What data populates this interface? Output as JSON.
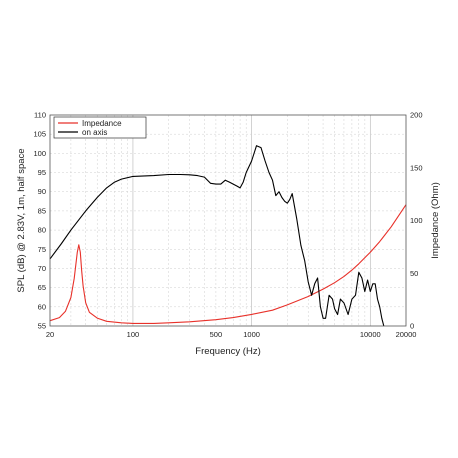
{
  "chart_data": {
    "type": "line",
    "xlabel": "Frequency (Hz)",
    "ylabel_left": "SPL (dB) @ 2.83V, 1m, half space",
    "ylabel_right": "Impedance (Ohm)",
    "x_scale": "log",
    "xlim": [
      20,
      20000
    ],
    "ylim_left": [
      55,
      110
    ],
    "ylim_right": [
      0,
      200
    ],
    "x_ticks": [
      {
        "value": 20,
        "label": "20"
      },
      {
        "value": 100,
        "label": "100"
      },
      {
        "value": 500,
        "label": "500"
      },
      {
        "value": 1000,
        "label": "1000"
      },
      {
        "value": 10000,
        "label": "10000"
      },
      {
        "value": 20000,
        "label": "20000"
      }
    ],
    "y_ticks_left": [
      "55",
      "60",
      "65",
      "70",
      "75",
      "80",
      "85",
      "90",
      "95",
      "100",
      "105",
      "110"
    ],
    "y_ticks_right": [
      "0",
      "50",
      "100",
      "150",
      "200"
    ],
    "grid": true,
    "legend_position": "top-left",
    "series": [
      {
        "name": "Impedance",
        "axis": "right",
        "color": "#e8312a",
        "x": [
          20,
          24,
          27,
          30,
          32,
          34,
          35,
          36,
          37,
          38,
          40,
          43,
          50,
          60,
          80,
          100,
          150,
          200,
          300,
          500,
          700,
          1000,
          1500,
          2000,
          3000,
          4000,
          5000,
          6000,
          7000,
          8000,
          10000,
          12000,
          15000,
          20000
        ],
        "values": [
          5,
          8,
          14,
          27,
          45,
          70,
          77,
          70,
          52,
          38,
          22,
          13,
          7.5,
          4.5,
          3,
          2.5,
          2.5,
          3,
          4,
          6,
          8,
          11,
          15,
          20,
          28,
          35,
          41,
          47,
          53,
          59,
          70,
          80,
          94,
          115
        ]
      },
      {
        "name": "on axis",
        "axis": "left",
        "color": "#000000",
        "x": [
          20,
          25,
          30,
          40,
          50,
          60,
          70,
          80,
          100,
          150,
          200,
          250,
          300,
          350,
          400,
          450,
          500,
          550,
          600,
          650,
          700,
          750,
          800,
          850,
          900,
          1000,
          1100,
          1200,
          1300,
          1400,
          1500,
          1600,
          1700,
          1800,
          1900,
          2000,
          2100,
          2200,
          2400,
          2600,
          2800,
          3000,
          3200,
          3400,
          3600,
          3800,
          4000,
          4200,
          4500,
          4800,
          5000,
          5300,
          5600,
          6000,
          6500,
          7000,
          7500,
          8000,
          8500,
          9000,
          9500,
          10000,
          10500,
          11000,
          11500,
          12000,
          12500,
          13000
        ],
        "values": [
          72.5,
          76.5,
          80,
          85,
          88.5,
          91,
          92.5,
          93.3,
          94,
          94.2,
          94.5,
          94.5,
          94.4,
          94.2,
          93.8,
          92.2,
          92,
          92,
          93,
          92.5,
          92,
          91.5,
          91,
          92.5,
          95,
          98,
          102,
          101.5,
          98,
          95,
          93,
          89,
          90,
          88.5,
          87.5,
          87,
          88,
          89.5,
          83,
          76,
          72,
          66.5,
          63,
          66,
          67.5,
          60,
          57,
          57,
          63,
          62,
          59.5,
          58,
          62,
          61,
          58,
          62,
          63,
          69,
          67.5,
          64,
          67,
          64,
          66,
          66,
          62,
          60,
          57,
          55
        ]
      }
    ]
  }
}
